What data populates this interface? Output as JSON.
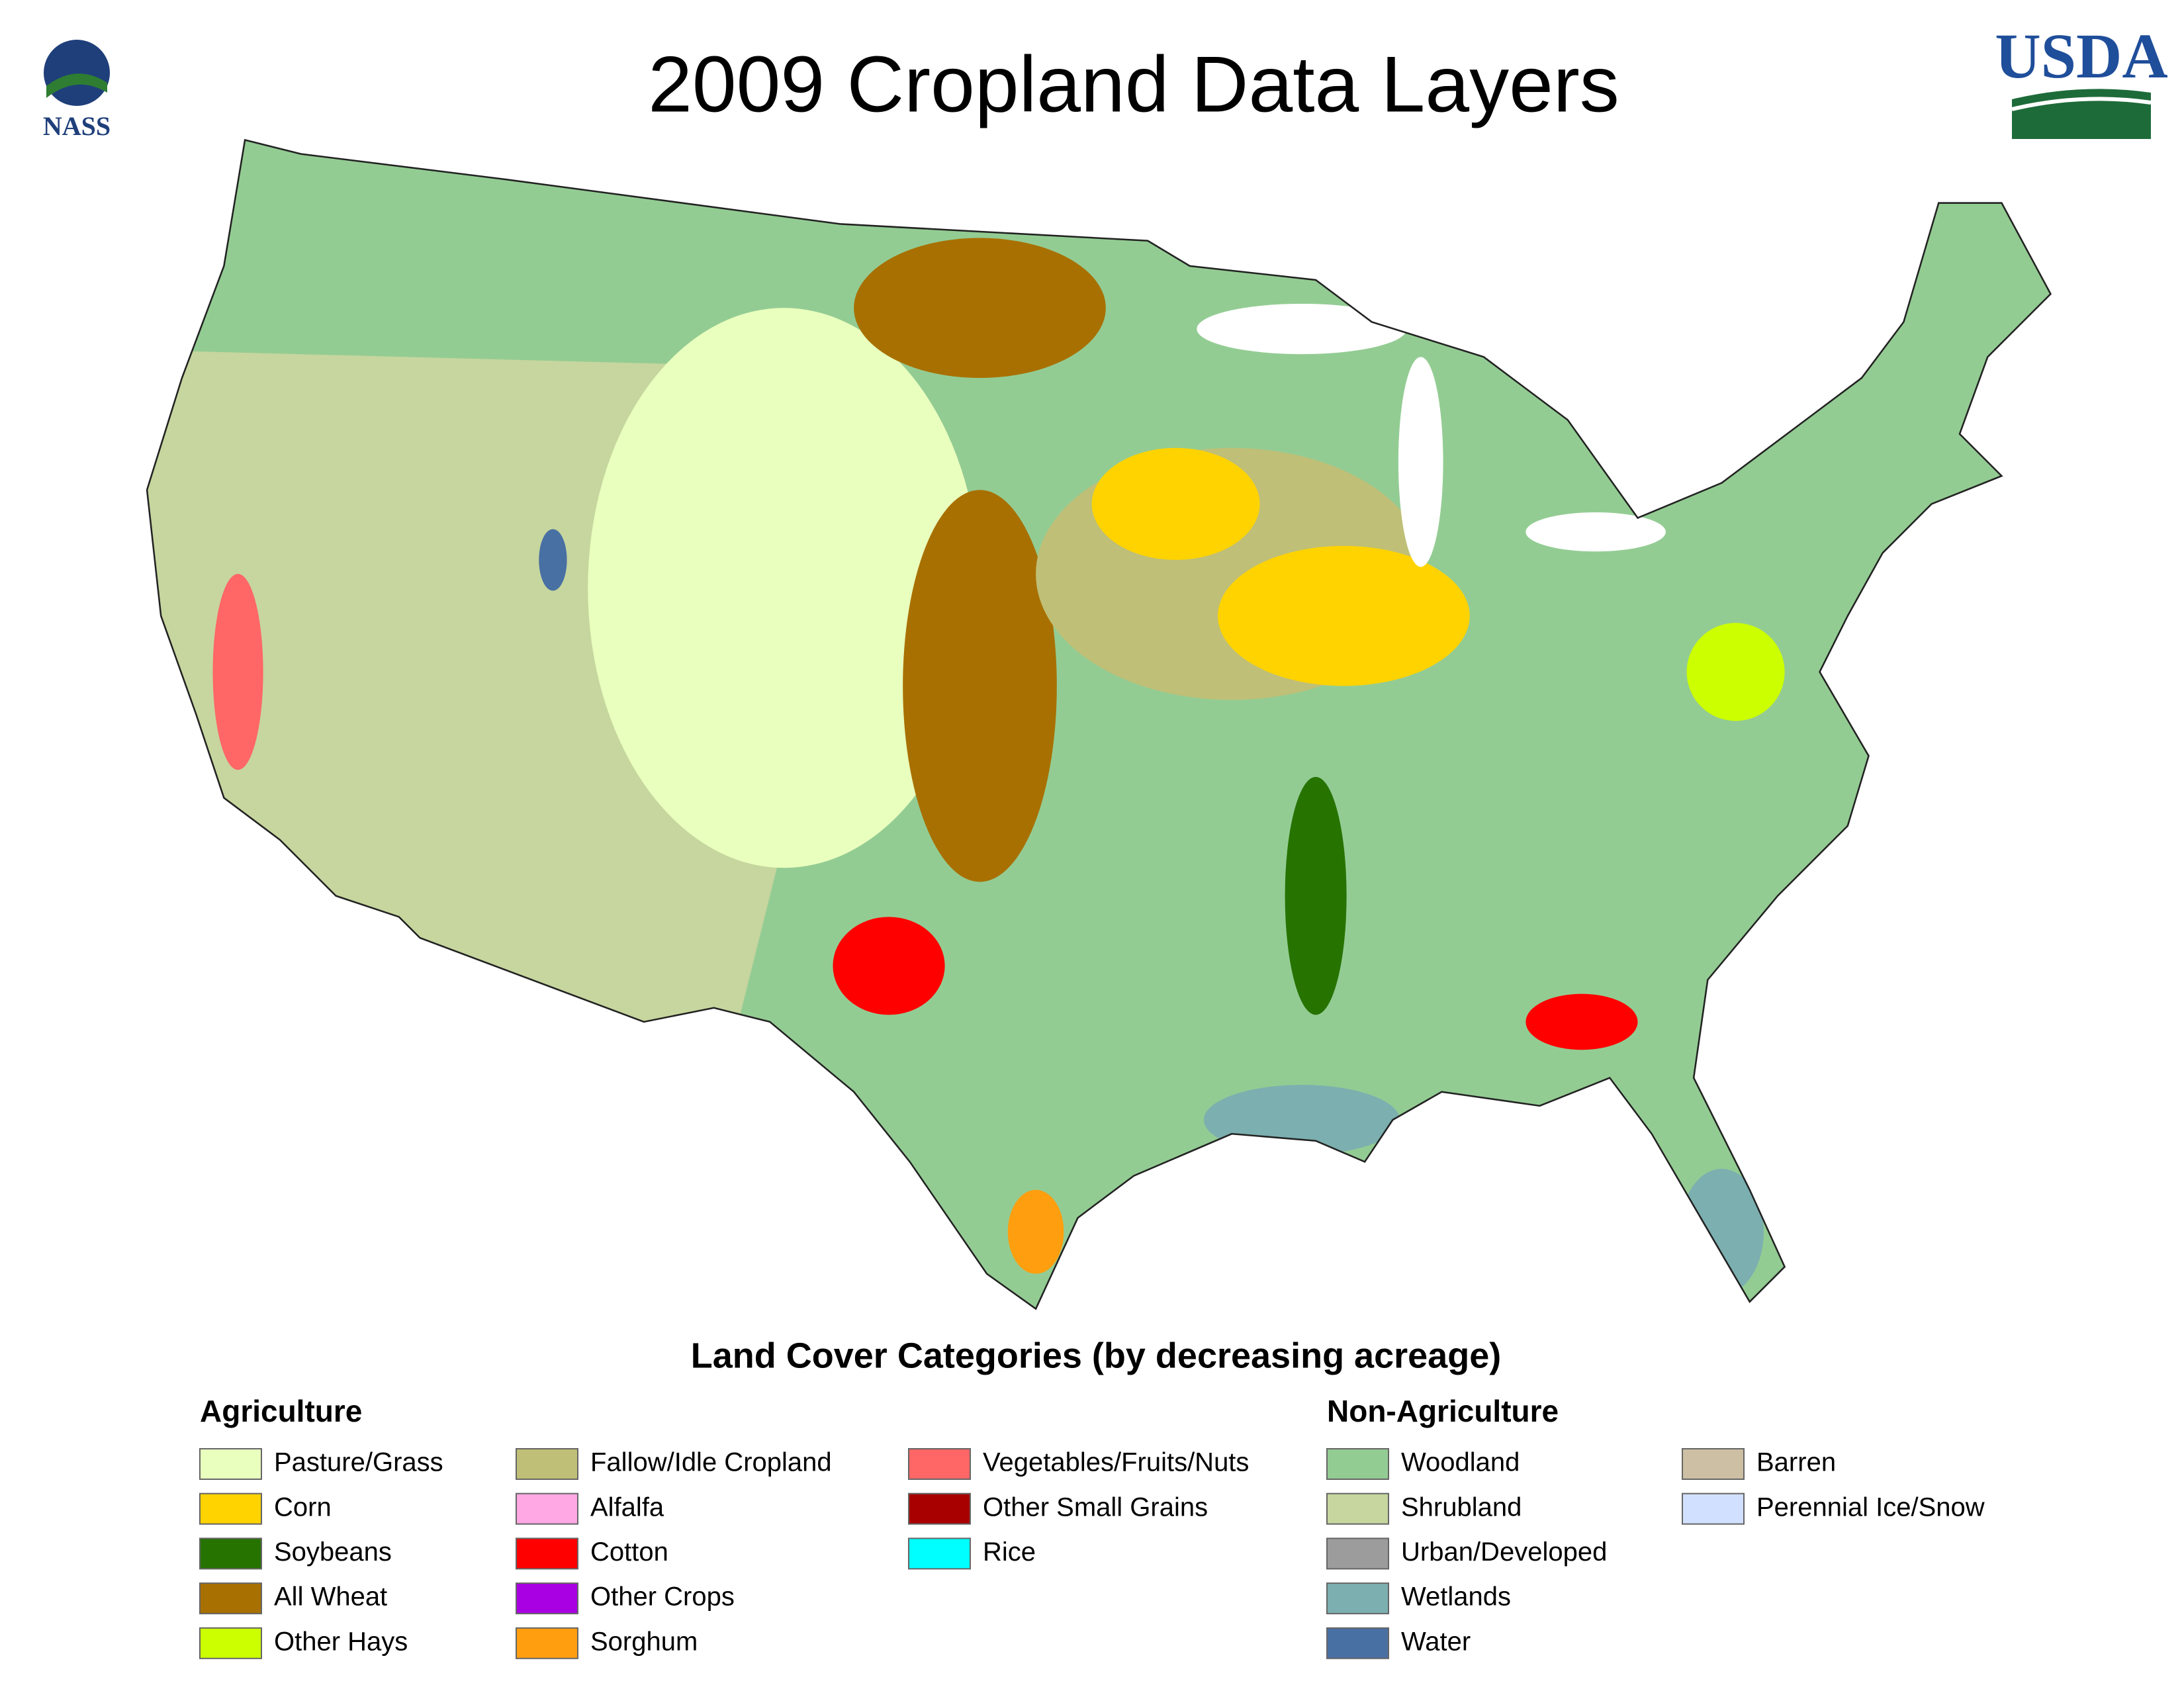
{
  "header": {
    "title": "2009 Cropland Data Layers",
    "left_logo": "NASS",
    "right_logo": "USDA"
  },
  "legend": {
    "title": "Land Cover Categories (by decreasing acreage)",
    "groups": [
      {
        "name": "Agriculture",
        "items": [
          {
            "label": "Pasture/Grass",
            "color": "#e9ffbe"
          },
          {
            "label": "Corn",
            "color": "#ffd300"
          },
          {
            "label": "Soybeans",
            "color": "#267300"
          },
          {
            "label": "All Wheat",
            "color": "#a87000"
          },
          {
            "label": "Other Hays",
            "color": "#ccff00"
          },
          {
            "label": "Fallow/Idle Cropland",
            "color": "#bfbf77"
          },
          {
            "label": "Alfalfa",
            "color": "#ffa8e3"
          },
          {
            "label": "Cotton",
            "color": "#ff0000"
          },
          {
            "label": "Other Crops",
            "color": "#a800e3"
          },
          {
            "label": "Sorghum",
            "color": "#ff9e0f"
          },
          {
            "label": "Vegetables/Fruits/Nuts",
            "color": "#ff6666"
          },
          {
            "label": "Other Small Grains",
            "color": "#a80000"
          },
          {
            "label": "Rice",
            "color": "#00ffff"
          }
        ]
      },
      {
        "name": "Non-Agriculture",
        "items": [
          {
            "label": "Woodland",
            "color": "#93cc93"
          },
          {
            "label": "Shrubland",
            "color": "#c6d69e"
          },
          {
            "label": "Urban/Developed",
            "color": "#9c9c9c"
          },
          {
            "label": "Wetlands",
            "color": "#7cafaf"
          },
          {
            "label": "Water",
            "color": "#4970a3"
          },
          {
            "label": "Barren",
            "color": "#ccbfa3"
          },
          {
            "label": "Perennial Ice/Snow",
            "color": "#d1e0ff"
          }
        ]
      }
    ]
  }
}
